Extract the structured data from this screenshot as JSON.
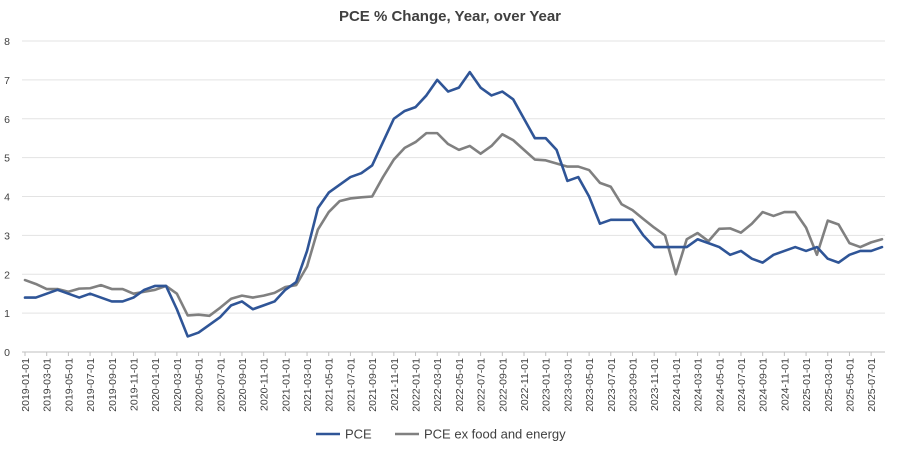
{
  "chart_data": {
    "type": "line",
    "title": "PCE % Change, Year, over Year",
    "xlabel": "",
    "ylabel": "",
    "ylim": [
      0,
      8
    ],
    "yticks": [
      "0",
      "1",
      "2",
      "3",
      "4",
      "5",
      "6",
      "7",
      "8"
    ],
    "grid": true,
    "legend_position": "bottom",
    "x_tick_labels": [
      "2019-01-01",
      "2019-03-01",
      "2019-05-01",
      "2019-07-01",
      "2019-09-01",
      "2019-11-01",
      "2020-01-01",
      "2020-03-01",
      "2020-05-01",
      "2020-07-01",
      "2020-09-01",
      "2020-11-01",
      "2021-01-01",
      "2021-03-01",
      "2021-05-01",
      "2021-07-01",
      "2021-09-01",
      "2021-11-01",
      "2022-01-01",
      "2022-03-01",
      "2022-05-01",
      "2022-07-01",
      "2022-09-01",
      "2022-11-01",
      "2023-01-01",
      "2023-03-01",
      "2023-05-01",
      "2023-07-01",
      "2023-09-01",
      "2023-11-01",
      "2024-01-01",
      "2024-03-01",
      "2024-05-01",
      "2024-07-01",
      "2024-09-01",
      "2024-11-01",
      "2025-01-01",
      "2025-03-01",
      "2025-05-01",
      "2025-07-01"
    ],
    "x": [
      "2019-01-01",
      "2019-02-01",
      "2019-03-01",
      "2019-04-01",
      "2019-05-01",
      "2019-06-01",
      "2019-07-01",
      "2019-08-01",
      "2019-09-01",
      "2019-10-01",
      "2019-11-01",
      "2019-12-01",
      "2020-01-01",
      "2020-02-01",
      "2020-03-01",
      "2020-04-01",
      "2020-05-01",
      "2020-06-01",
      "2020-07-01",
      "2020-08-01",
      "2020-09-01",
      "2020-10-01",
      "2020-11-01",
      "2020-12-01",
      "2021-01-01",
      "2021-02-01",
      "2021-03-01",
      "2021-04-01",
      "2021-05-01",
      "2021-06-01",
      "2021-07-01",
      "2021-08-01",
      "2021-09-01",
      "2021-10-01",
      "2021-11-01",
      "2021-12-01",
      "2022-01-01",
      "2022-02-01",
      "2022-03-01",
      "2022-04-01",
      "2022-05-01",
      "2022-06-01",
      "2022-07-01",
      "2022-08-01",
      "2022-09-01",
      "2022-10-01",
      "2022-11-01",
      "2022-12-01",
      "2023-01-01",
      "2023-02-01",
      "2023-03-01",
      "2023-04-01",
      "2023-05-01",
      "2023-06-01",
      "2023-07-01",
      "2023-08-01",
      "2023-09-01",
      "2023-10-01",
      "2023-11-01",
      "2023-12-01",
      "2024-01-01",
      "2024-02-01",
      "2024-03-01",
      "2024-04-01",
      "2024-05-01",
      "2024-06-01",
      "2024-07-01",
      "2024-08-01",
      "2024-09-01",
      "2024-10-01",
      "2024-11-01",
      "2024-12-01",
      "2025-01-01",
      "2025-02-01",
      "2025-03-01",
      "2025-04-01",
      "2025-05-01",
      "2025-06-01",
      "2025-07-01",
      "2025-08-01"
    ],
    "series": [
      {
        "name": "PCE",
        "color": "#2F5597",
        "values": [
          1.4,
          1.4,
          1.5,
          1.6,
          1.5,
          1.4,
          1.5,
          1.4,
          1.3,
          1.3,
          1.4,
          1.6,
          1.7,
          1.7,
          1.1,
          0.4,
          0.5,
          0.7,
          0.9,
          1.2,
          1.3,
          1.1,
          1.2,
          1.3,
          1.6,
          1.8,
          2.6,
          3.7,
          4.1,
          4.3,
          4.5,
          4.6,
          4.8,
          5.4,
          6.0,
          6.2,
          6.3,
          6.6,
          7.0,
          6.7,
          6.8,
          7.2,
          6.8,
          6.6,
          6.7,
          6.5,
          6.0,
          5.5,
          5.5,
          5.2,
          4.4,
          4.5,
          4.0,
          3.3,
          3.4,
          3.4,
          3.4,
          3.0,
          2.7,
          2.7,
          2.7,
          2.7,
          2.9,
          2.8,
          2.7,
          2.5,
          2.6,
          2.4,
          2.3,
          2.5,
          2.6,
          2.7,
          2.6,
          2.7,
          2.4,
          2.3,
          2.5,
          2.6,
          2.6,
          2.7
        ]
      },
      {
        "name": "PCE ex food and energy",
        "color": "#808080",
        "values": [
          1.85,
          1.75,
          1.62,
          1.62,
          1.55,
          1.63,
          1.64,
          1.72,
          1.62,
          1.62,
          1.5,
          1.55,
          1.6,
          1.7,
          1.5,
          0.94,
          0.96,
          0.93,
          1.14,
          1.37,
          1.45,
          1.4,
          1.45,
          1.52,
          1.67,
          1.72,
          2.2,
          3.15,
          3.6,
          3.88,
          3.95,
          3.98,
          4.0,
          4.5,
          4.95,
          5.25,
          5.4,
          5.63,
          5.63,
          5.35,
          5.2,
          5.3,
          5.1,
          5.3,
          5.6,
          5.45,
          5.2,
          4.95,
          4.93,
          4.85,
          4.77,
          4.77,
          4.68,
          4.35,
          4.25,
          3.8,
          3.65,
          3.42,
          3.2,
          3.0,
          2.0,
          2.9,
          3.06,
          2.85,
          3.17,
          3.18,
          3.07,
          3.3,
          3.6,
          3.5,
          3.6,
          3.6,
          3.2,
          2.5,
          3.38,
          3.28,
          2.8,
          2.7,
          2.82,
          2.9
        ]
      }
    ]
  }
}
